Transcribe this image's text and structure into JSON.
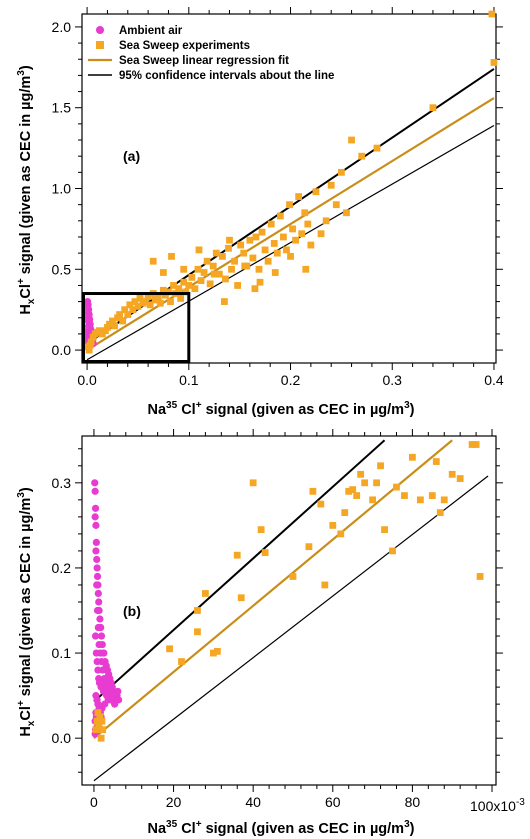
{
  "chart_data": [
    {
      "type": "scatter",
      "panel_label": "(a)",
      "xlim": [
        -0.005,
        0.402
      ],
      "ylim": [
        -0.08,
        2.08
      ],
      "x_ticks": [
        0.0,
        0.1,
        0.2,
        0.3,
        0.4
      ],
      "x_tick_labels": [
        "0.0",
        "0.1",
        "0.2",
        "0.3",
        "0.4"
      ],
      "y_ticks": [
        0.0,
        0.5,
        1.0,
        1.5,
        2.0
      ],
      "y_tick_labels": [
        "0.0",
        "0.5",
        "1.0",
        "1.5",
        "2.0"
      ],
      "xlabel": {
        "pre": "Na",
        "sup": "35",
        "mid": " Cl",
        "sup2": "+",
        "post": " signal (given as CEC in µg/m",
        "sup3": "3",
        "end": ")"
      },
      "ylabel": {
        "pre": "H",
        "sub": "x",
        "mid": "Cl",
        "sup": "+",
        "post": " signal (given as CEC in µg/m",
        "sup3": "3",
        "end": ")"
      },
      "legend": {
        "position": "top-left",
        "entries": [
          {
            "label": "Ambient air",
            "marker": "circle",
            "color": "#e83bd1"
          },
          {
            "label": "Sea Sweep experiments",
            "marker": "square",
            "color": "#f5a623"
          },
          {
            "label": "Sea Sweep linear regression fit",
            "marker": "line",
            "color": "#c98d19"
          },
          {
            "label": "95% confidence intervals about the line",
            "marker": "line",
            "color": "#000000"
          }
        ]
      },
      "zoom_box": {
        "x": [
          -0.005,
          0.1
        ],
        "y": [
          -0.08,
          0.35
        ]
      },
      "series": [
        {
          "name": "Ambient air",
          "marker": "circle",
          "color": "#e83bd1",
          "x": [
            0.0005,
            0.001,
            0.0015,
            0.002,
            0.0025,
            0.003,
            0.0035,
            0.004,
            0.0045,
            0.005,
            0.0055,
            0.006,
            0.0008,
            0.0012,
            0.0018,
            0.0022,
            0.0028,
            0.0032,
            0.0038,
            0.0042,
            0.001,
            0.002,
            0.003,
            0.004,
            0.005,
            0.0015,
            0.0025,
            0.0035,
            0.0045,
            0.0007,
            0.0012,
            0.0017,
            0.0009,
            0.0013,
            0.0011,
            0.0016,
            0.0006,
            0.0014,
            0.0019,
            0.0024
          ],
          "y": [
            0.3,
            0.28,
            0.25,
            0.22,
            0.19,
            0.16,
            0.13,
            0.1,
            0.08,
            0.06,
            0.05,
            0.04,
            0.26,
            0.23,
            0.2,
            0.17,
            0.14,
            0.11,
            0.09,
            0.07,
            0.12,
            0.1,
            0.08,
            0.06,
            0.05,
            0.15,
            0.12,
            0.09,
            0.07,
            0.2,
            0.18,
            0.14,
            0.06,
            0.04,
            0.02,
            0.03,
            0.1,
            0.08,
            0.05,
            0.03
          ]
        },
        {
          "name": "Sea Sweep experiments",
          "marker": "square",
          "color": "#f5a623",
          "x": [
            0.001,
            0.002,
            0.003,
            0.004,
            0.006,
            0.008,
            0.01,
            0.012,
            0.015,
            0.018,
            0.02,
            0.022,
            0.025,
            0.027,
            0.03,
            0.032,
            0.035,
            0.037,
            0.04,
            0.042,
            0.045,
            0.047,
            0.05,
            0.052,
            0.055,
            0.057,
            0.06,
            0.062,
            0.065,
            0.067,
            0.07,
            0.072,
            0.075,
            0.077,
            0.08,
            0.082,
            0.085,
            0.087,
            0.09,
            0.092,
            0.095,
            0.097,
            0.1,
            0.103,
            0.106,
            0.109,
            0.112,
            0.115,
            0.118,
            0.121,
            0.124,
            0.127,
            0.13,
            0.133,
            0.136,
            0.139,
            0.142,
            0.145,
            0.148,
            0.151,
            0.154,
            0.157,
            0.16,
            0.163,
            0.166,
            0.169,
            0.172,
            0.175,
            0.178,
            0.181,
            0.184,
            0.187,
            0.19,
            0.193,
            0.196,
            0.199,
            0.202,
            0.205,
            0.208,
            0.211,
            0.214,
            0.217,
            0.22,
            0.225,
            0.23,
            0.235,
            0.24,
            0.245,
            0.25,
            0.255,
            0.26,
            0.27,
            0.285,
            0.34,
            0.398,
            0.4,
            0.065,
            0.075,
            0.083,
            0.095,
            0.11,
            0.125,
            0.14,
            0.155,
            0.17,
            0.185,
            0.2,
            0.215,
            0.135,
            0.165
          ],
          "y": [
            0.02,
            0.0,
            0.03,
            0.05,
            0.08,
            0.1,
            0.11,
            0.12,
            0.1,
            0.12,
            0.14,
            0.16,
            0.18,
            0.15,
            0.2,
            0.22,
            0.18,
            0.25,
            0.22,
            0.28,
            0.25,
            0.3,
            0.27,
            0.32,
            0.29,
            0.3,
            0.33,
            0.28,
            0.35,
            0.31,
            0.33,
            0.29,
            0.37,
            0.34,
            0.36,
            0.3,
            0.4,
            0.35,
            0.38,
            0.32,
            0.42,
            0.36,
            0.4,
            0.45,
            0.38,
            0.5,
            0.43,
            0.48,
            0.55,
            0.41,
            0.52,
            0.6,
            0.47,
            0.58,
            0.44,
            0.63,
            0.5,
            0.55,
            0.4,
            0.65,
            0.6,
            0.52,
            0.68,
            0.57,
            0.7,
            0.5,
            0.73,
            0.62,
            0.55,
            0.78,
            0.66,
            0.6,
            0.83,
            0.7,
            0.62,
            0.9,
            0.75,
            0.68,
            0.95,
            0.72,
            0.85,
            0.78,
            0.65,
            0.98,
            0.72,
            0.8,
            1.02,
            0.9,
            1.1,
            0.85,
            1.3,
            1.2,
            1.25,
            1.5,
            2.08,
            1.78,
            0.55,
            0.48,
            0.58,
            0.5,
            0.62,
            0.47,
            0.68,
            0.52,
            0.42,
            0.48,
            0.58,
            0.5,
            0.3,
            0.38
          ]
        }
      ],
      "lines": [
        {
          "name": "Sea Sweep linear regression fit",
          "color": "#c98d19",
          "width": 2.2,
          "x": [
            0.0,
            0.4
          ],
          "y": [
            0.0,
            1.56
          ]
        },
        {
          "name": "95% confidence intervals about the line",
          "color": "#000000",
          "width": 2.0,
          "x": [
            0.0,
            0.4
          ],
          "y": [
            0.04,
            1.74
          ]
        },
        {
          "name": "lower",
          "color": "#000000",
          "width": 1.2,
          "x": [
            0.0,
            0.4
          ],
          "y": [
            -0.06,
            1.39
          ]
        }
      ]
    },
    {
      "type": "scatter",
      "panel_label": "(b)",
      "xlim": [
        -3,
        101
      ],
      "ylim": [
        -0.055,
        0.355
      ],
      "x_ticks": [
        0,
        20,
        40,
        60,
        80
      ],
      "x_tick_labels": [
        "0",
        "20",
        "40",
        "60",
        "80"
      ],
      "x_axis_multiplier": "100x10",
      "x_axis_multiplier_exp": "-3",
      "y_ticks": [
        0.0,
        0.1,
        0.2,
        0.3
      ],
      "y_tick_labels": [
        "0.0",
        "0.1",
        "0.2",
        "0.3"
      ],
      "xlabel": {
        "pre": "Na",
        "sup": "35",
        "mid": " Cl",
        "sup2": "+",
        "post": " signal (given as CEC in µg/m",
        "sup3": "3",
        "end": ")"
      },
      "ylabel": {
        "pre": "H",
        "sub": "x",
        "mid": "Cl",
        "sup": "+",
        "post": " signal (given as CEC in µg/m",
        "sup3": "3",
        "end": ")"
      },
      "series": [
        {
          "name": "Ambient air",
          "marker": "circle",
          "color": "#e83bd1",
          "x": [
            0.2,
            0.3,
            0.4,
            0.5,
            0.6,
            0.7,
            0.8,
            0.9,
            1.0,
            1.1,
            1.2,
            1.3,
            1.5,
            1.7,
            1.9,
            2.1,
            2.3,
            2.5,
            2.8,
            3.1,
            3.4,
            3.7,
            4.0,
            4.3,
            4.6,
            5.0,
            5.4,
            5.8,
            6.2,
            0.3,
            0.5,
            0.7,
            0.9,
            1.1,
            1.3,
            1.6,
            1.9,
            2.2,
            2.6,
            3.0,
            3.5,
            4.0,
            4.5,
            5.0,
            0.4,
            0.6,
            0.8,
            1.0,
            1.2,
            1.4,
            1.8,
            2.4,
            3.2,
            4.2,
            5.2,
            0.5,
            0.8,
            1.0,
            1.3,
            1.6,
            2.0,
            2.7,
            3.6,
            4.8,
            6.0,
            0.3,
            0.6,
            0.9,
            1.2,
            1.5,
            1.8,
            0.4,
            0.7,
            1.0,
            1.4,
            0.5,
            0.8,
            1.1,
            0.3,
            0.6
          ],
          "y": [
            0.3,
            0.29,
            0.27,
            0.25,
            0.23,
            0.21,
            0.2,
            0.19,
            0.18,
            0.17,
            0.16,
            0.15,
            0.14,
            0.13,
            0.12,
            0.11,
            0.1,
            0.1,
            0.09,
            0.085,
            0.08,
            0.075,
            0.07,
            0.065,
            0.06,
            0.055,
            0.05,
            0.05,
            0.045,
            0.26,
            0.22,
            0.18,
            0.15,
            0.13,
            0.11,
            0.1,
            0.09,
            0.08,
            0.07,
            0.065,
            0.06,
            0.055,
            0.05,
            0.045,
            0.12,
            0.1,
            0.09,
            0.08,
            0.07,
            0.065,
            0.06,
            0.055,
            0.05,
            0.045,
            0.04,
            0.05,
            0.045,
            0.04,
            0.035,
            0.03,
            0.035,
            0.04,
            0.045,
            0.05,
            0.055,
            0.02,
            0.025,
            0.02,
            0.015,
            0.02,
            0.025,
            0.01,
            0.012,
            0.015,
            0.02,
            0.03,
            0.028,
            0.032,
            0.005,
            0.008
          ]
        },
        {
          "name": "Sea Sweep experiments",
          "marker": "square",
          "color": "#f5a623",
          "x": [
            0.5,
            0.8,
            1.0,
            1.2,
            1.5,
            1.8,
            2.0,
            2.2,
            19,
            22,
            26,
            26,
            28,
            30,
            31,
            36,
            37,
            40,
            42,
            43,
            50,
            54,
            55,
            57,
            58,
            60,
            62,
            63,
            64,
            65,
            66,
            67,
            68,
            70,
            71,
            72,
            73,
            75,
            76,
            78,
            80,
            82,
            85,
            86,
            87,
            88,
            90,
            92,
            95,
            96,
            97
          ],
          "y": [
            0.01,
            0.02,
            0.03,
            0.015,
            0.025,
            0.0,
            0.02,
            0.01,
            0.105,
            0.09,
            0.15,
            0.125,
            0.17,
            0.1,
            0.102,
            0.215,
            0.165,
            0.3,
            0.245,
            0.218,
            0.19,
            0.225,
            0.29,
            0.275,
            0.18,
            0.25,
            0.24,
            0.265,
            0.29,
            0.292,
            0.285,
            0.31,
            0.3,
            0.28,
            0.3,
            0.32,
            0.245,
            0.22,
            0.295,
            0.285,
            0.33,
            0.28,
            0.285,
            0.325,
            0.265,
            0.28,
            0.31,
            0.305,
            0.345,
            0.345,
            0.19
          ]
        }
      ],
      "lines": [
        {
          "name": "Sea Sweep linear regression fit",
          "color": "#c98d19",
          "width": 2.2,
          "x": [
            0.0,
            90.0
          ],
          "y": [
            0.0,
            0.35
          ]
        },
        {
          "name": "95% confidence intervals about the line",
          "color": "#000000",
          "width": 2.0,
          "x": [
            0.0,
            73.0
          ],
          "y": [
            0.043,
            0.35
          ]
        },
        {
          "name": "lower",
          "color": "#000000",
          "width": 1.2,
          "x": [
            0.0,
            99.0
          ],
          "y": [
            -0.05,
            0.308
          ]
        }
      ]
    }
  ]
}
